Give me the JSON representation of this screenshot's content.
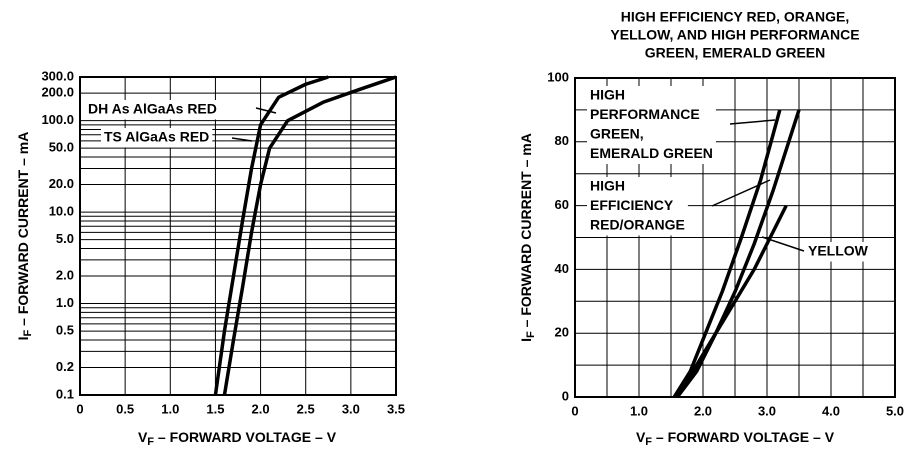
{
  "chart_data": [
    {
      "type": "line",
      "log_y": true,
      "grid": true,
      "ylabel": [
        "I",
        "F",
        " – FORWARD CURRENT – mA"
      ],
      "xlabel": [
        "V",
        "F",
        " – FORWARD VOLTAGE – V"
      ],
      "xlim": [
        0,
        3.5
      ],
      "ylim": [
        0.1,
        300
      ],
      "xticks": [
        0,
        0.5,
        {
          "value": 1,
          "label": "1.0"
        },
        1.5,
        {
          "value": 2,
          "label": "2.0"
        },
        2.5,
        {
          "value": 3,
          "label": "3.0"
        },
        3.5
      ],
      "yticks": [
        0.1,
        0.2,
        0.5,
        {
          "value": 1,
          "label": "1.0"
        },
        {
          "value": 2,
          "label": "2.0"
        },
        {
          "value": 5,
          "label": "5.0"
        },
        {
          "value": 10,
          "label": "10.0"
        },
        {
          "value": 20,
          "label": "20.0"
        },
        {
          "value": 50,
          "label": "50.0"
        },
        {
          "value": 100,
          "label": "100.0"
        },
        {
          "value": 200,
          "label": "200.0"
        },
        {
          "value": 300,
          "label": "300.0"
        }
      ],
      "ygrid": [
        0.3,
        0.4,
        0.6,
        0.7,
        0.8,
        0.9,
        3,
        4,
        6,
        7,
        8,
        9,
        30,
        40,
        60,
        70,
        80,
        90
      ],
      "series": [
        {
          "name": [
            "DH As AlGaAs RED"
          ],
          "color": "#000000",
          "x": [
            1.5,
            1.6,
            1.7,
            1.8,
            1.9,
            2.0,
            2.2,
            2.5,
            2.75
          ],
          "values": [
            0.1,
            0.5,
            2,
            8,
            30,
            90,
            180,
            250,
            300
          ]
        },
        {
          "name": [
            "TS AlGaAs RED"
          ],
          "color": "#000000",
          "x": [
            1.6,
            1.7,
            1.8,
            1.9,
            2.0,
            2.1,
            2.3,
            2.7,
            3.1,
            3.5
          ],
          "values": [
            0.1,
            0.4,
            1.5,
            6,
            20,
            50,
            100,
            160,
            220,
            300
          ]
        }
      ]
    },
    {
      "type": "line",
      "log_y": false,
      "grid": true,
      "title": [
        "HIGH EFFICIENCY RED, ORANGE,",
        "YELLOW, AND HIGH PERFORMANCE",
        "GREEN, EMERALD GREEN"
      ],
      "ylabel": [
        "I",
        "F",
        " – FORWARD CURRENT – mA"
      ],
      "xlabel": [
        "V",
        "F",
        " – FORWARD VOLTAGE – V"
      ],
      "xlim": [
        0,
        5
      ],
      "ylim": [
        0,
        100
      ],
      "xticks": [
        0,
        {
          "value": 1,
          "label": "1.0"
        },
        {
          "value": 2,
          "label": "2.0"
        },
        {
          "value": 3,
          "label": "3.0"
        },
        {
          "value": 4,
          "label": "4.0"
        },
        {
          "value": 5,
          "label": "5.0"
        }
      ],
      "yticks": [
        0,
        20,
        40,
        60,
        80,
        100
      ],
      "xgrid": [
        0.5,
        1.5,
        2.5,
        3.5,
        4.5
      ],
      "ygrid": [
        10,
        30,
        50,
        70,
        90
      ],
      "series": [
        {
          "name": [
            "HIGH",
            "PERFORMANCE",
            "GREEN,",
            "EMERALD GREEN"
          ],
          "color": "#000000",
          "x": [
            1.55,
            1.8,
            2.0,
            2.3,
            2.6,
            2.9,
            3.2
          ],
          "values": [
            0,
            8,
            18,
            33,
            50,
            68,
            90
          ]
        },
        {
          "name": [
            "HIGH",
            "EFFICIENCY",
            "RED/ORANGE"
          ],
          "color": "#000000",
          "x": [
            1.6,
            1.9,
            2.2,
            2.5,
            2.8,
            3.1,
            3.5
          ],
          "values": [
            0,
            8,
            20,
            33,
            48,
            65,
            90
          ]
        },
        {
          "name": [
            "YELLOW"
          ],
          "color": "#000000",
          "x": [
            1.6,
            1.9,
            2.2,
            2.5,
            2.8,
            3.1,
            3.3
          ],
          "values": [
            0,
            10,
            20,
            30,
            40,
            52,
            60
          ]
        }
      ]
    }
  ]
}
